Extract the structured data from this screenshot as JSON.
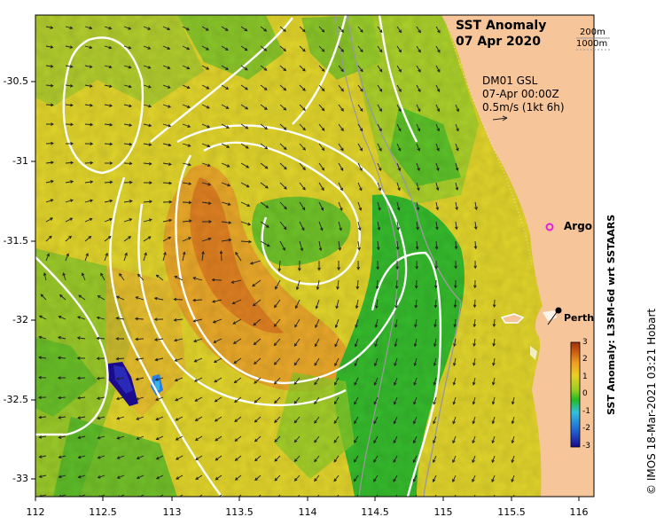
{
  "title": {
    "line1": "SST Anomaly",
    "line2": "07 Apr 2020"
  },
  "depth_legend": [
    "200m",
    "1000m"
  ],
  "vector_info": {
    "line1": "DM01 GSL",
    "line2": "07-Apr 00:00Z",
    "line3": "0.5m/s (1kt 6h)"
  },
  "places": [
    {
      "name": "Argo"
    },
    {
      "name": "Perth"
    }
  ],
  "axes": {
    "x_ticks": [
      "112",
      "112.5",
      "113",
      "113.5",
      "114",
      "114.5",
      "115",
      "115.5",
      "116"
    ],
    "y_ticks": [
      "-30.5",
      "-31",
      "-31.5",
      "-32",
      "-32.5",
      "-33"
    ]
  },
  "colorbar": {
    "label": "SST Anomaly: L3SM-6d wrt SSTAARS",
    "ticks": [
      "3",
      "2",
      "1",
      "0",
      "-1",
      "-2",
      "-3"
    ],
    "range": [
      -3,
      3
    ],
    "colors": [
      "#1a0a8c",
      "#2060d0",
      "#30c0e0",
      "#22bb22",
      "#9ad020",
      "#e8d020",
      "#f0a020",
      "#d06010",
      "#a03010"
    ]
  },
  "credit": "© IMOS 18-Mar-2021 03:21 Hobart",
  "colors": {
    "land": "#f6c59a",
    "ocean_base": "#e6dc2a",
    "warm_core": "#e08a22",
    "cool_band": "#26b82e",
    "contour": "#ffffff",
    "isobath": "#9a9a9a",
    "argo": "#e020e0"
  }
}
